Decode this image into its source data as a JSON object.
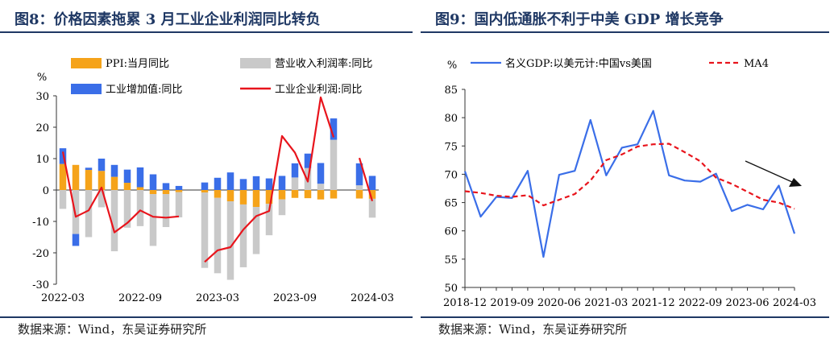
{
  "left_panel": {
    "title": "图8：价格因素拖累 3 月工业企业利润同比转负",
    "source": "数据来源：Wind，东吴证券研究所"
  },
  "right_panel": {
    "title": "图9：国内低通胀不利于中美 GDP 增长竞争",
    "source": "数据来源：Wind，东吴证券研究所"
  },
  "colors": {
    "title": "#1f3864",
    "ppi": "#f5a31a",
    "revenue_margin": "#c9c9c9",
    "industrial_va": "#3a6ee8",
    "profit": "#e8141c",
    "gdp_ratio": "#3a6ee8",
    "ma4": "#e8141c"
  },
  "chart_data": [
    {
      "type": "bar",
      "stacked": true,
      "ylabel": "%",
      "ylim": [
        -30,
        30
      ],
      "yticks": [
        -30,
        -20,
        -10,
        0,
        10,
        20,
        30
      ],
      "grid": false,
      "legend_position": "top",
      "categories": [
        "2022-03",
        "2022-04",
        "2022-05",
        "2022-06",
        "2022-07",
        "2022-08",
        "2022-09",
        "2022-10",
        "2022-11",
        "2022-12",
        "2023-01",
        "2023-02",
        "2023-03",
        "2023-04",
        "2023-05",
        "2023-06",
        "2023-07",
        "2023-08",
        "2023-09",
        "2023-10",
        "2023-11",
        "2023-12",
        "2024-01",
        "2024-02",
        "2024-03"
      ],
      "xtick_labels": [
        "2022-03",
        "2022-09",
        "2023-03",
        "2023-09",
        "2024-03"
      ],
      "series": [
        {
          "name": "PPI:当月同比",
          "kind": "bar",
          "values": [
            8.3,
            8.0,
            6.4,
            6.1,
            4.2,
            2.3,
            0.9,
            -1.3,
            -1.3,
            -0.7,
            null,
            -0.8,
            -2.5,
            -3.6,
            -4.6,
            -5.4,
            -4.4,
            -3.0,
            -2.5,
            -2.6,
            -3.0,
            -2.7,
            null,
            -2.7,
            -2.8
          ]
        },
        {
          "name": "营业收入利润率:同比",
          "kind": "bar",
          "values": [
            -6,
            -14,
            -15,
            -5.5,
            -19.5,
            -12,
            -11.5,
            -16.5,
            -10.5,
            -8,
            null,
            -24,
            -24,
            -25,
            -20,
            -15,
            -10,
            -5,
            4,
            7,
            2,
            16,
            null,
            1.5,
            -6
          ]
        },
        {
          "name": "工业增加值:同比",
          "kind": "bar",
          "values": [
            5.0,
            -3.8,
            0.7,
            3.9,
            3.8,
            4.2,
            6.3,
            5.0,
            2.2,
            1.3,
            null,
            2.4,
            3.9,
            5.6,
            3.5,
            4.4,
            3.7,
            4.5,
            4.5,
            4.6,
            6.6,
            6.8,
            null,
            7.0,
            4.5
          ]
        },
        {
          "name": "工业企业利润:同比",
          "kind": "line",
          "values": [
            12.2,
            -8.5,
            -6.5,
            0.8,
            -13.5,
            -10.5,
            -6.5,
            -8.5,
            -8.8,
            -8.4,
            null,
            -22.9,
            -19.2,
            -18.2,
            -12.6,
            -8.3,
            -6.7,
            17.2,
            11.9,
            2.7,
            29.5,
            16.8,
            null,
            10.2,
            -3.5
          ]
        }
      ]
    },
    {
      "type": "line",
      "ylabel": "%",
      "ylim": [
        50,
        85
      ],
      "yticks": [
        50,
        55,
        60,
        65,
        70,
        75,
        80,
        85
      ],
      "grid": false,
      "legend_position": "top",
      "x": [
        "2018-12",
        "2019-03",
        "2019-06",
        "2019-09",
        "2019-12",
        "2020-03",
        "2020-06",
        "2020-09",
        "2020-12",
        "2021-03",
        "2021-06",
        "2021-09",
        "2021-12",
        "2022-03",
        "2022-06",
        "2022-09",
        "2022-12",
        "2023-03",
        "2023-06",
        "2023-09",
        "2023-12",
        "2024-03"
      ],
      "xtick_labels": [
        "2018-12",
        "2019-09",
        "2020-06",
        "2021-03",
        "2021-12",
        "2022-09",
        "2023-06",
        "2024-03"
      ],
      "series": [
        {
          "name": "名义GDP:以美元计:中国vs美国",
          "style": "solid",
          "values": [
            70.5,
            62.5,
            66.0,
            65.8,
            70.6,
            55.4,
            69.9,
            70.6,
            79.6,
            69.8,
            74.7,
            75.3,
            81.2,
            69.8,
            68.9,
            68.7,
            70.1,
            63.5,
            64.6,
            63.8,
            68.0,
            59.5
          ]
        },
        {
          "name": "MA4",
          "style": "dashed",
          "values": [
            67.0,
            66.7,
            66.2,
            66.0,
            66.3,
            64.5,
            65.5,
            66.5,
            68.9,
            72.5,
            73.5,
            74.9,
            75.3,
            75.4,
            73.9,
            72.3,
            69.4,
            68.3,
            66.9,
            65.5,
            65.0,
            63.9
          ]
        }
      ],
      "annotation": "downward-trend-arrow"
    }
  ]
}
